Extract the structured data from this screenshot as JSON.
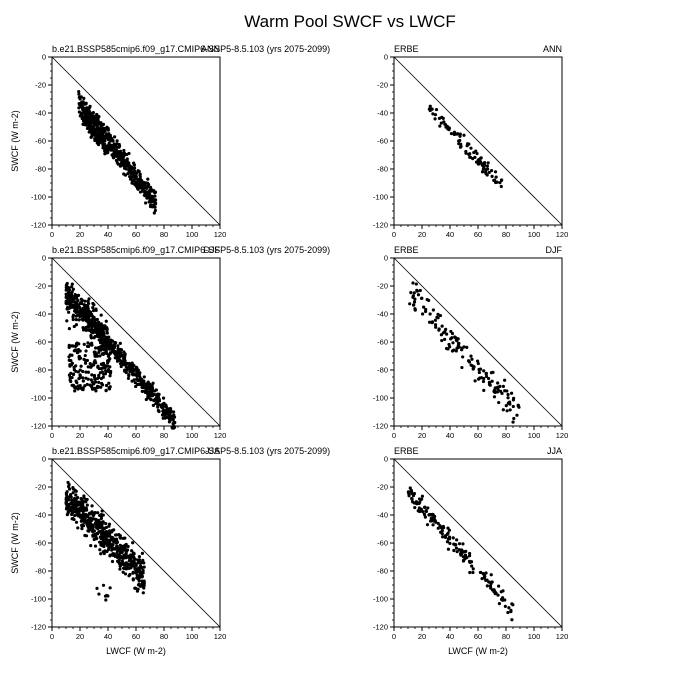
{
  "figure": {
    "title": "Warm Pool SWCF vs LWCF"
  },
  "chart_data": [
    {
      "type": "scatter",
      "id": "model-ann",
      "title_left": "b.e21.BSSP585cmip6.f09_g17.CMIP6-SSP5-8.5.103 (yrs 2075-2099)",
      "title_right": "ANN",
      "xlabel": "",
      "ylabel": "SWCF (W m-2)",
      "xlim": [
        0,
        120
      ],
      "ylim": [
        -120,
        0
      ],
      "xticks": [
        0,
        20,
        40,
        60,
        80,
        100,
        120
      ],
      "yticks": [
        0,
        -20,
        -40,
        -60,
        -80,
        -100,
        -120
      ],
      "reference_line": [
        [
          0,
          0
        ],
        [
          120,
          -120
        ]
      ],
      "clusters": [
        {
          "type": "band",
          "x": [
            19,
            74
          ],
          "y_at_min": -32,
          "y_at_max": -104,
          "spread": 6,
          "n": 520
        },
        {
          "type": "band",
          "x": [
            22,
            40
          ],
          "y_at_min": -43,
          "y_at_max": -67,
          "spread": 4,
          "n": 120
        }
      ]
    },
    {
      "type": "scatter",
      "id": "obs-ann",
      "title_left": "ERBE",
      "title_right": "ANN",
      "xlabel": "",
      "ylabel": "",
      "xlim": [
        0,
        120
      ],
      "ylim": [
        -120,
        0
      ],
      "xticks": [
        0,
        20,
        40,
        60,
        80,
        100,
        120
      ],
      "yticks": [
        0,
        -20,
        -40,
        -60,
        -80,
        -100,
        -120
      ],
      "reference_line": [
        [
          0,
          0
        ],
        [
          120,
          -120
        ]
      ],
      "clusters": [
        {
          "type": "band",
          "x": [
            24,
            77
          ],
          "y_at_min": -35,
          "y_at_max": -92,
          "spread": 4,
          "n": 95
        }
      ]
    },
    {
      "type": "scatter",
      "id": "model-djf",
      "title_left": "b.e21.BSSP585cmip6.f09_g17.CMIP6-SSP5-8.5.103 (yrs 2075-2099)",
      "title_right": "DJF",
      "xlabel": "",
      "ylabel": "SWCF (W m-2)",
      "xlim": [
        0,
        120
      ],
      "ylim": [
        -120,
        0
      ],
      "xticks": [
        0,
        20,
        40,
        60,
        80,
        100,
        120
      ],
      "yticks": [
        0,
        -20,
        -40,
        -60,
        -80,
        -100,
        -120
      ],
      "reference_line": [
        [
          0,
          0
        ],
        [
          120,
          -120
        ]
      ],
      "clusters": [
        {
          "type": "band",
          "x": [
            10,
            88
          ],
          "y_at_min": -24,
          "y_at_max": -117,
          "spread": 5,
          "n": 520
        },
        {
          "type": "band",
          "x": [
            10,
            40
          ],
          "y_at_min": -28,
          "y_at_max": -60,
          "spread": 10,
          "n": 180
        },
        {
          "type": "blob",
          "x": [
            12,
            42
          ],
          "y": [
            -95,
            -60
          ],
          "n": 200
        }
      ]
    },
    {
      "type": "scatter",
      "id": "obs-djf",
      "title_left": "ERBE",
      "title_right": "DJF",
      "xlabel": "",
      "ylabel": "",
      "xlim": [
        0,
        120
      ],
      "ylim": [
        -120,
        0
      ],
      "xticks": [
        0,
        20,
        40,
        60,
        80,
        100,
        120
      ],
      "yticks": [
        0,
        -20,
        -40,
        -60,
        -80,
        -100,
        -120
      ],
      "reference_line": [
        [
          0,
          0
        ],
        [
          120,
          -120
        ]
      ],
      "clusters": [
        {
          "type": "band",
          "x": [
            10,
            90
          ],
          "y_at_min": -23,
          "y_at_max": -113,
          "spread": 7,
          "n": 150
        }
      ]
    },
    {
      "type": "scatter",
      "id": "model-jja",
      "title_left": "b.e21.BSSP585cmip6.f09_g17.CMIP6-SSP5-8.5.103 (yrs 2075-2099)",
      "title_right": "JJA",
      "xlabel": "LWCF (W m-2)",
      "ylabel": "SWCF (W m-2)",
      "xlim": [
        0,
        120
      ],
      "ylim": [
        -120,
        0
      ],
      "xticks": [
        0,
        20,
        40,
        60,
        80,
        100,
        120
      ],
      "yticks": [
        0,
        -20,
        -40,
        -60,
        -80,
        -100,
        -120
      ],
      "reference_line": [
        [
          0,
          0
        ],
        [
          120,
          -120
        ]
      ],
      "clusters": [
        {
          "type": "band",
          "x": [
            10,
            66
          ],
          "y_at_min": -27,
          "y_at_max": -84,
          "spread": 9,
          "n": 560
        },
        {
          "type": "blob",
          "x": [
            32,
            42
          ],
          "y": [
            -102,
            -90
          ],
          "n": 8
        }
      ]
    },
    {
      "type": "scatter",
      "id": "obs-jja",
      "title_left": "ERBE",
      "title_right": "JJA",
      "xlabel": "LWCF (W m-2)",
      "ylabel": "",
      "xlim": [
        0,
        120
      ],
      "ylim": [
        -120,
        0
      ],
      "xticks": [
        0,
        20,
        40,
        60,
        80,
        100,
        120
      ],
      "yticks": [
        0,
        -20,
        -40,
        -60,
        -80,
        -100,
        -120
      ],
      "reference_line": [
        [
          0,
          0
        ],
        [
          120,
          -120
        ]
      ],
      "clusters": [
        {
          "type": "band",
          "x": [
            10,
            85
          ],
          "y_at_min": -23,
          "y_at_max": -108,
          "spread": 5,
          "n": 160
        }
      ]
    }
  ]
}
